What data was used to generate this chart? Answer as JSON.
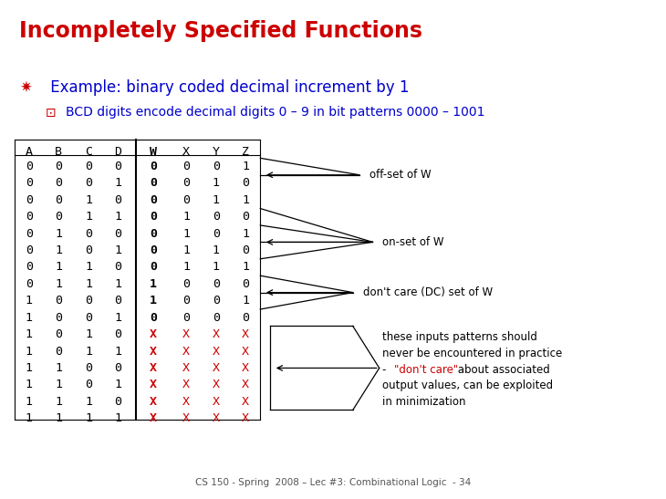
{
  "title": "Incompletely Specified Functions",
  "title_color": "#cc0000",
  "bullet1_sym": "✷",
  "bullet1_text": " Example: binary coded decimal increment by 1",
  "bullet1_color": "#0000cc",
  "bullet2_sym": "⊡",
  "bullet2_sym_color": "#cc0000",
  "bullet2_text": "BCD digits encode decimal digits 0 – 9 in bit patterns 0000 – 1001",
  "bullet2_color": "#0000cc",
  "headers": [
    "A",
    "B",
    "C",
    "D",
    "W",
    "X",
    "Y",
    "Z"
  ],
  "table_data": [
    [
      "0",
      "0",
      "0",
      "0",
      "0",
      "0",
      "0",
      "1"
    ],
    [
      "0",
      "0",
      "0",
      "1",
      "0",
      "0",
      "1",
      "0"
    ],
    [
      "0",
      "0",
      "1",
      "0",
      "0",
      "0",
      "1",
      "1"
    ],
    [
      "0",
      "0",
      "1",
      "1",
      "0",
      "1",
      "0",
      "0"
    ],
    [
      "0",
      "1",
      "0",
      "0",
      "0",
      "1",
      "0",
      "1"
    ],
    [
      "0",
      "1",
      "0",
      "1",
      "0",
      "1",
      "1",
      "0"
    ],
    [
      "0",
      "1",
      "1",
      "0",
      "0",
      "1",
      "1",
      "1"
    ],
    [
      "0",
      "1",
      "1",
      "1",
      "1",
      "0",
      "0",
      "0"
    ],
    [
      "1",
      "0",
      "0",
      "0",
      "1",
      "0",
      "0",
      "1"
    ],
    [
      "1",
      "0",
      "0",
      "1",
      "0",
      "0",
      "0",
      "0"
    ],
    [
      "1",
      "0",
      "1",
      "0",
      "X",
      "X",
      "X",
      "X"
    ],
    [
      "1",
      "0",
      "1",
      "1",
      "X",
      "X",
      "X",
      "X"
    ],
    [
      "1",
      "1",
      "0",
      "0",
      "X",
      "X",
      "X",
      "X"
    ],
    [
      "1",
      "1",
      "0",
      "1",
      "X",
      "X",
      "X",
      "X"
    ],
    [
      "1",
      "1",
      "1",
      "0",
      "X",
      "X",
      "X",
      "X"
    ],
    [
      "1",
      "1",
      "1",
      "1",
      "X",
      "X",
      "X",
      "X"
    ]
  ],
  "footer": "CS 150 - Spring  2008 – Lec #3: Combinational Logic  - 34",
  "footer_color": "#555555",
  "label_sets": [
    "off-set of W",
    "on-set of W",
    "don't care (DC) set of W"
  ],
  "ann_line1": "these inputs patterns should",
  "ann_line2": "never be encountered in practice",
  "ann_line3a": "- ",
  "ann_line3b": "\"don't care\"",
  "ann_line3c": " about associated",
  "ann_line4": "output values, can be exploited",
  "ann_line5": "in minimization",
  "ann_red_color": "#cc0000",
  "bg_color": "#ffffff",
  "table_font": "monospace"
}
